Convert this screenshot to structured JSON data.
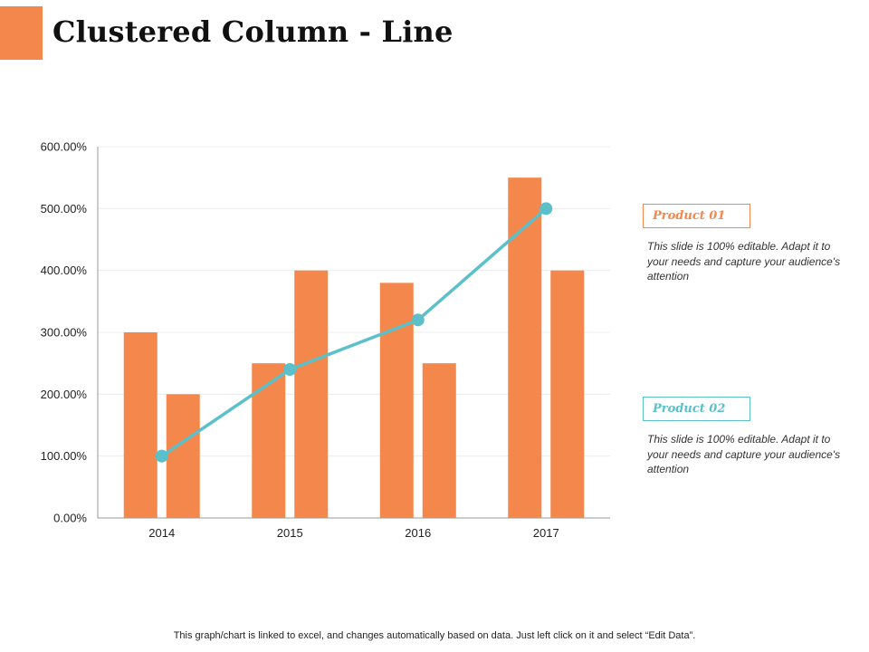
{
  "slide": {
    "title": "Clustered Column - Line",
    "footer": "This graph/chart is linked to excel, and changes automatically based on data. Just left click on it and select “Edit Data”."
  },
  "legend": {
    "product1": {
      "label": "Product 01",
      "description": "This slide is 100% editable. Adapt it to your needs and capture your audience's attention"
    },
    "product2": {
      "label": "Product 02",
      "description": "This slide is 100% editable. Adapt it to your needs and capture your audience's attention"
    }
  },
  "colors": {
    "accent": "#f4874b",
    "bar": "#f4874b",
    "line": "#5bc0c9"
  },
  "chart_data": {
    "type": "bar",
    "categories": [
      "2014",
      "2015",
      "2016",
      "2017"
    ],
    "bars": [
      {
        "values": [
          300,
          250,
          380,
          550
        ]
      },
      {
        "values": [
          200,
          400,
          250,
          400
        ]
      }
    ],
    "line": {
      "values": [
        100,
        240,
        320,
        500
      ]
    },
    "ylim": [
      0,
      600
    ],
    "yticks": [
      0,
      100,
      200,
      300,
      400,
      500,
      600
    ],
    "ytick_labels": [
      "0.00%",
      "100.00%",
      "200.00%",
      "300.00%",
      "400.00%",
      "500.00%",
      "600.00%"
    ],
    "grid": true
  }
}
